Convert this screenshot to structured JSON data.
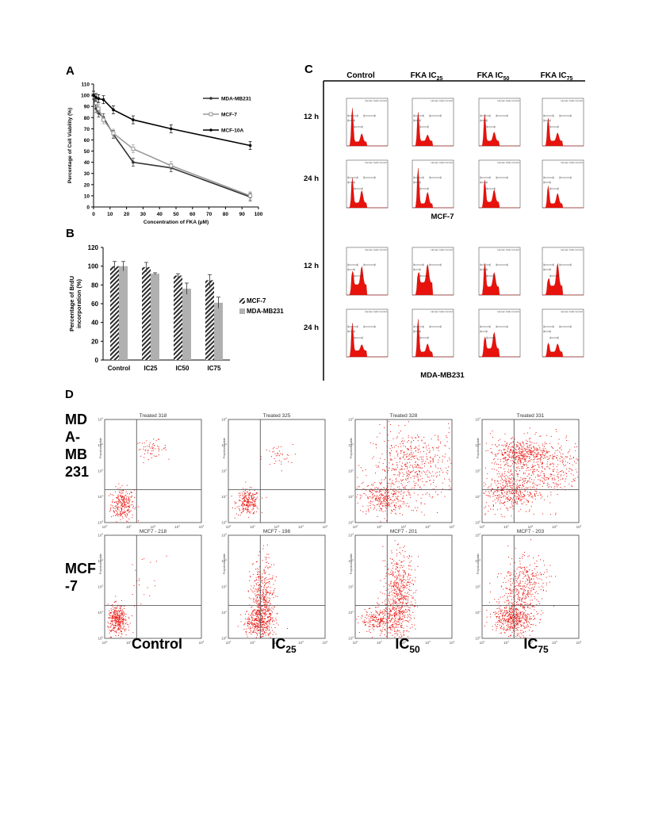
{
  "panels": {
    "a": "A",
    "b": "B",
    "c": "C",
    "d": "D"
  },
  "chart_data": [
    {
      "type": "line",
      "panel": "A",
      "title": "",
      "xlabel": "Concentration of FKA (µM)",
      "ylabel": "Percentage of Cell Viability (%)",
      "xlim": [
        0,
        100
      ],
      "ylim": [
        0,
        110
      ],
      "x_ticks": [
        "0",
        "10",
        "20",
        "30",
        "40",
        "50",
        "60",
        "70",
        "80",
        "90",
        "100"
      ],
      "y_ticks": [
        "0",
        "10",
        "20",
        "30",
        "40",
        "50",
        "60",
        "70",
        "80",
        "90",
        "100",
        "110"
      ],
      "legend_position": "top-right",
      "grid": false,
      "series": [
        {
          "name": "MDA-MB231",
          "color": "#333333",
          "x": [
            0,
            1.5,
            3,
            6,
            12,
            24,
            47,
            95
          ],
          "y": [
            100,
            88,
            84,
            80,
            65,
            40,
            35,
            9
          ]
        },
        {
          "name": "MCF-7",
          "color": "#999999",
          "x": [
            0,
            1.5,
            3,
            6,
            12,
            24,
            47,
            95
          ],
          "y": [
            100,
            93,
            88,
            78,
            66,
            52,
            37,
            10
          ]
        },
        {
          "name": "MCF-10A",
          "color": "#000000",
          "x": [
            0,
            1.5,
            3,
            6,
            12,
            24,
            47,
            95
          ],
          "y": [
            100,
            98,
            97,
            96,
            87,
            78,
            70,
            55
          ]
        }
      ]
    },
    {
      "type": "bar",
      "panel": "B",
      "title": "",
      "xlabel": "",
      "ylabel": "Percentage of BrdU incorporation (%)",
      "ylabel_lines": [
        "Percentage of BrdU",
        "incorporation (%)"
      ],
      "ylim": [
        0,
        120
      ],
      "y_ticks": [
        "0",
        "20",
        "40",
        "60",
        "80",
        "100",
        "120"
      ],
      "categories": [
        "Control",
        "IC25",
        "IC50",
        "IC75"
      ],
      "legend_position": "right",
      "series": [
        {
          "name": "MCF-7",
          "pattern": "hatched",
          "values": [
            100,
            99,
            90,
            85
          ],
          "errors": [
            5,
            5,
            2,
            6
          ]
        },
        {
          "name": "MDA-MB231",
          "pattern": "solid",
          "color": "#b0b0b0",
          "values": [
            100,
            92,
            76,
            61
          ],
          "errors": [
            5,
            1,
            6,
            6
          ]
        }
      ]
    },
    {
      "type": "histogram_grid",
      "panel": "C",
      "column_headers": [
        {
          "base": "Control",
          "sub": ""
        },
        {
          "base": "FKA IC",
          "sub": "25"
        },
        {
          "base": "FKA IC",
          "sub": "50"
        },
        {
          "base": "FKA IC",
          "sub": "75"
        }
      ],
      "row_labels": [
        "12 h",
        "24 h",
        "12 h",
        "24 h"
      ],
      "group_labels": [
        "MCF-7",
        "MDA-MB231"
      ],
      "bar_color": "#e8120c",
      "cell_title": "Human Cells Control"
    },
    {
      "type": "scatter_grid",
      "panel": "D",
      "dot_color": "#e8120c",
      "row_labels": [
        [
          "MD",
          "A-",
          "MB",
          "231"
        ],
        [
          "MCF",
          "-7"
        ]
      ],
      "plot_titles": [
        [
          "Treated 318",
          "Treated 325",
          "Treated 328",
          "Treated 331"
        ],
        [
          "MCF7 - 218",
          "MCF7 - 198",
          "MCF7 - 201",
          "MCF7 - 203"
        ]
      ],
      "column_labels": [
        {
          "base": "Control",
          "sub": ""
        },
        {
          "base": "IC",
          "sub": "25"
        },
        {
          "base": "IC",
          "sub": "50"
        },
        {
          "base": "IC",
          "sub": "75"
        }
      ],
      "y_axis_label": "Propidium Iodide",
      "tick_labels": [
        "10",
        "10",
        "10",
        "10",
        "10"
      ],
      "tick_exponents": [
        "0",
        "1",
        "2",
        "3",
        "4"
      ]
    }
  ]
}
